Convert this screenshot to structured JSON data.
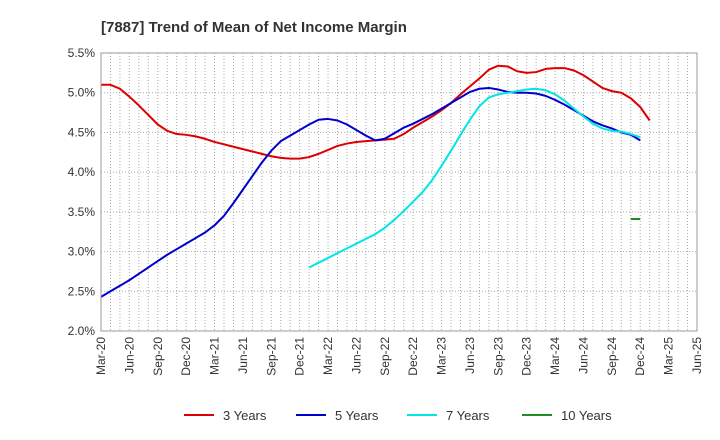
{
  "chart_data": {
    "type": "line",
    "title": "[7887]  Trend of Mean of Net Income Margin",
    "xlabel": "",
    "ylabel": "",
    "y_unit": "%",
    "ylim": [
      2.0,
      5.5
    ],
    "y_ticks": [
      "5.5%",
      "5.0%",
      "4.5%",
      "4.0%",
      "3.5%",
      "3.0%",
      "2.5%",
      "2.0%"
    ],
    "x_tick_labels": [
      "Mar-20",
      "Jun-20",
      "Sep-20",
      "Dec-20",
      "Mar-21",
      "Jun-21",
      "Sep-21",
      "Dec-21",
      "Mar-22",
      "Jun-22",
      "Sep-22",
      "Dec-22",
      "Mar-23",
      "Jun-23",
      "Sep-23",
      "Dec-23",
      "Mar-24",
      "Jun-24",
      "Sep-24",
      "Dec-24",
      "Mar-25",
      "Jun-25"
    ],
    "x_start": "Mar-20",
    "x_end": "Jun-25",
    "grid": true,
    "legend_position": "bottom",
    "series": [
      {
        "name": "3 Years",
        "color": "#dd0000",
        "values": [
          [
            0,
            5.1
          ],
          [
            1,
            5.1
          ],
          [
            2,
            5.05
          ],
          [
            3,
            4.95
          ],
          [
            4,
            4.84
          ],
          [
            5,
            4.72
          ],
          [
            6,
            4.6
          ],
          [
            7,
            4.52
          ],
          [
            8,
            4.48
          ],
          [
            9,
            4.47
          ],
          [
            10,
            4.45
          ],
          [
            11,
            4.42
          ],
          [
            12,
            4.38
          ],
          [
            13,
            4.35
          ],
          [
            14,
            4.32
          ],
          [
            15,
            4.29
          ],
          [
            16,
            4.26
          ],
          [
            17,
            4.23
          ],
          [
            18,
            4.2
          ],
          [
            19,
            4.18
          ],
          [
            20,
            4.17
          ],
          [
            21,
            4.17
          ],
          [
            22,
            4.19
          ],
          [
            23,
            4.23
          ],
          [
            24,
            4.28
          ],
          [
            25,
            4.33
          ],
          [
            26,
            4.36
          ],
          [
            27,
            4.38
          ],
          [
            28,
            4.39
          ],
          [
            29,
            4.4
          ],
          [
            30,
            4.41
          ],
          [
            31,
            4.42
          ],
          [
            32,
            4.48
          ],
          [
            33,
            4.56
          ],
          [
            34,
            4.63
          ],
          [
            35,
            4.7
          ],
          [
            36,
            4.78
          ],
          [
            37,
            4.87
          ],
          [
            38,
            4.98
          ],
          [
            39,
            5.08
          ],
          [
            40,
            5.18
          ],
          [
            41,
            5.29
          ],
          [
            42,
            5.34
          ],
          [
            43,
            5.33
          ],
          [
            44,
            5.27
          ],
          [
            45,
            5.25
          ],
          [
            46,
            5.26
          ],
          [
            47,
            5.3
          ],
          [
            48,
            5.31
          ],
          [
            49,
            5.31
          ],
          [
            50,
            5.28
          ],
          [
            51,
            5.22
          ],
          [
            52,
            5.14
          ],
          [
            53,
            5.06
          ],
          [
            54,
            5.02
          ],
          [
            55,
            5.0
          ],
          [
            56,
            4.93
          ],
          [
            57,
            4.82
          ],
          [
            58,
            4.65
          ]
        ]
      },
      {
        "name": "5 Years",
        "color": "#0000cc",
        "values": [
          [
            0,
            2.43
          ],
          [
            1,
            2.5
          ],
          [
            2,
            2.57
          ],
          [
            3,
            2.64
          ],
          [
            4,
            2.72
          ],
          [
            5,
            2.8
          ],
          [
            6,
            2.88
          ],
          [
            7,
            2.96
          ],
          [
            8,
            3.03
          ],
          [
            9,
            3.1
          ],
          [
            10,
            3.17
          ],
          [
            11,
            3.24
          ],
          [
            12,
            3.33
          ],
          [
            13,
            3.45
          ],
          [
            14,
            3.61
          ],
          [
            15,
            3.78
          ],
          [
            16,
            3.95
          ],
          [
            17,
            4.12
          ],
          [
            18,
            4.27
          ],
          [
            19,
            4.39
          ],
          [
            20,
            4.46
          ],
          [
            21,
            4.53
          ],
          [
            22,
            4.6
          ],
          [
            23,
            4.66
          ],
          [
            24,
            4.67
          ],
          [
            25,
            4.65
          ],
          [
            26,
            4.6
          ],
          [
            27,
            4.53
          ],
          [
            28,
            4.46
          ],
          [
            29,
            4.4
          ],
          [
            30,
            4.42
          ],
          [
            31,
            4.49
          ],
          [
            32,
            4.56
          ],
          [
            33,
            4.61
          ],
          [
            34,
            4.67
          ],
          [
            35,
            4.73
          ],
          [
            36,
            4.8
          ],
          [
            37,
            4.87
          ],
          [
            38,
            4.94
          ],
          [
            39,
            5.01
          ],
          [
            40,
            5.05
          ],
          [
            41,
            5.06
          ],
          [
            42,
            5.04
          ],
          [
            43,
            5.01
          ],
          [
            44,
            5.0
          ],
          [
            45,
            5.0
          ],
          [
            46,
            4.99
          ],
          [
            47,
            4.96
          ],
          [
            48,
            4.91
          ],
          [
            49,
            4.85
          ],
          [
            50,
            4.78
          ],
          [
            51,
            4.71
          ],
          [
            52,
            4.64
          ],
          [
            53,
            4.59
          ],
          [
            54,
            4.55
          ],
          [
            55,
            4.5
          ],
          [
            56,
            4.47
          ],
          [
            57,
            4.4
          ]
        ]
      },
      {
        "name": "7 Years",
        "color": "#00e5e5",
        "values": [
          [
            22,
            2.8
          ],
          [
            23,
            2.86
          ],
          [
            24,
            2.92
          ],
          [
            25,
            2.98
          ],
          [
            26,
            3.04
          ],
          [
            27,
            3.1
          ],
          [
            28,
            3.16
          ],
          [
            29,
            3.22
          ],
          [
            30,
            3.3
          ],
          [
            31,
            3.4
          ],
          [
            32,
            3.51
          ],
          [
            33,
            3.63
          ],
          [
            34,
            3.75
          ],
          [
            35,
            3.9
          ],
          [
            36,
            4.08
          ],
          [
            37,
            4.27
          ],
          [
            38,
            4.47
          ],
          [
            39,
            4.66
          ],
          [
            40,
            4.83
          ],
          [
            41,
            4.94
          ],
          [
            42,
            4.98
          ],
          [
            43,
            5.0
          ],
          [
            44,
            5.02
          ],
          [
            45,
            5.04
          ],
          [
            46,
            5.05
          ],
          [
            47,
            5.03
          ],
          [
            48,
            4.98
          ],
          [
            49,
            4.9
          ],
          [
            50,
            4.8
          ],
          [
            51,
            4.7
          ],
          [
            52,
            4.61
          ],
          [
            53,
            4.55
          ],
          [
            54,
            4.52
          ],
          [
            55,
            4.51
          ],
          [
            56,
            4.48
          ],
          [
            57,
            4.44
          ]
        ]
      },
      {
        "name": "10 Years",
        "color": "#228b22",
        "values": [
          [
            56,
            3.41
          ],
          [
            57,
            3.41
          ]
        ]
      }
    ]
  }
}
